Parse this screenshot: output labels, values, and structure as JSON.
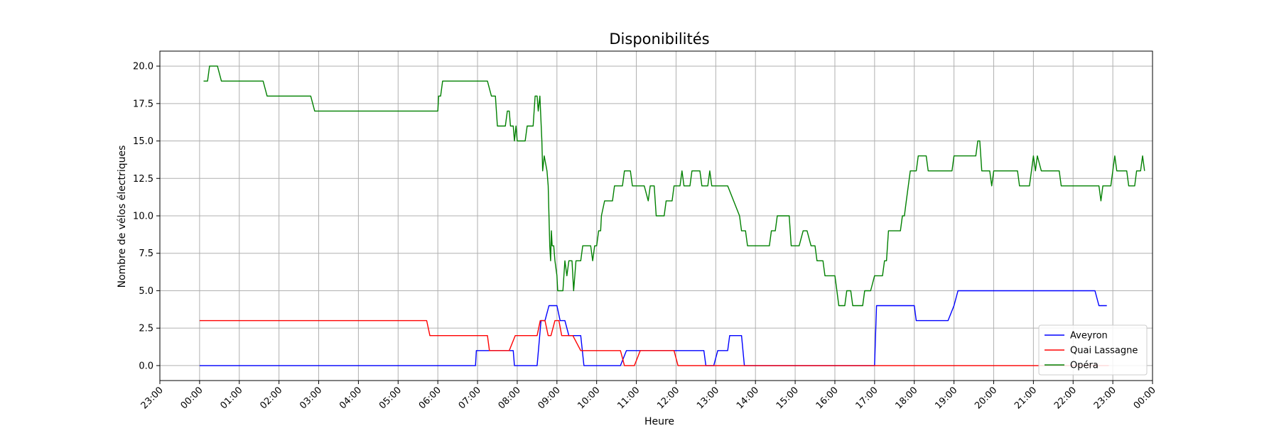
{
  "chart_data": {
    "type": "line",
    "title": "Disponibilités",
    "xlabel": "Heure",
    "ylabel": "Nombre de vélos électriques",
    "x_unit": "hour of day (23:00 on left edge of axis = -1)",
    "xlim": [
      -1.0,
      24.0
    ],
    "ylim": [
      -1.0,
      21.0
    ],
    "xticks": [
      -1,
      0,
      1,
      2,
      3,
      4,
      5,
      6,
      7,
      8,
      9,
      10,
      11,
      12,
      13,
      14,
      15,
      16,
      17,
      18,
      19,
      20,
      21,
      22,
      23,
      24
    ],
    "xtick_labels": [
      "23:00",
      "00:00",
      "01:00",
      "02:00",
      "03:00",
      "04:00",
      "05:00",
      "06:00",
      "07:00",
      "08:00",
      "09:00",
      "10:00",
      "11:00",
      "12:00",
      "13:00",
      "14:00",
      "15:00",
      "16:00",
      "17:00",
      "18:00",
      "19:00",
      "20:00",
      "21:00",
      "22:00",
      "23:00",
      "00:00"
    ],
    "yticks": [
      0,
      2.5,
      5,
      7.5,
      10,
      12.5,
      15,
      17.5,
      20
    ],
    "ytick_labels": [
      "0.0",
      "2.5",
      "5.0",
      "7.5",
      "10.0",
      "12.5",
      "15.0",
      "17.5",
      "20.0"
    ],
    "grid": true,
    "legend_position": "bottom-right",
    "series": [
      {
        "name": "Aveyron",
        "color": "#0000ff",
        "points": [
          [
            0.0,
            0
          ],
          [
            6.95,
            0
          ],
          [
            6.97,
            1
          ],
          [
            7.9,
            1
          ],
          [
            7.93,
            0
          ],
          [
            8.5,
            0
          ],
          [
            8.6,
            3
          ],
          [
            8.7,
            3
          ],
          [
            8.8,
            4
          ],
          [
            9.0,
            4
          ],
          [
            9.08,
            3
          ],
          [
            9.2,
            3
          ],
          [
            9.3,
            2
          ],
          [
            9.6,
            2
          ],
          [
            9.68,
            0
          ],
          [
            10.6,
            0
          ],
          [
            10.75,
            1
          ],
          [
            11.95,
            1
          ],
          [
            12.05,
            1
          ],
          [
            12.7,
            1
          ],
          [
            12.75,
            0
          ],
          [
            12.95,
            0
          ],
          [
            13.05,
            1
          ],
          [
            13.3,
            1
          ],
          [
            13.35,
            2
          ],
          [
            13.65,
            2
          ],
          [
            13.72,
            0
          ],
          [
            17.0,
            0
          ],
          [
            17.05,
            4
          ],
          [
            18.0,
            4
          ],
          [
            18.05,
            3
          ],
          [
            18.85,
            3
          ],
          [
            19.0,
            4
          ],
          [
            19.1,
            5
          ],
          [
            22.55,
            5
          ],
          [
            22.65,
            4
          ],
          [
            22.85,
            4
          ]
        ]
      },
      {
        "name": "Quai Lassagne",
        "color": "#ff0000",
        "points": [
          [
            0.0,
            3
          ],
          [
            5.72,
            3
          ],
          [
            5.8,
            2
          ],
          [
            7.25,
            2
          ],
          [
            7.3,
            1
          ],
          [
            7.8,
            1
          ],
          [
            7.95,
            2
          ],
          [
            8.5,
            2
          ],
          [
            8.58,
            3
          ],
          [
            8.7,
            3
          ],
          [
            8.78,
            2
          ],
          [
            8.85,
            2
          ],
          [
            8.95,
            3
          ],
          [
            9.05,
            3
          ],
          [
            9.12,
            2
          ],
          [
            9.4,
            2
          ],
          [
            9.6,
            1
          ],
          [
            10.6,
            1
          ],
          [
            10.7,
            0
          ],
          [
            10.95,
            0
          ],
          [
            11.1,
            1
          ],
          [
            11.95,
            1
          ],
          [
            12.05,
            0
          ],
          [
            22.9,
            0
          ]
        ]
      },
      {
        "name": "Opéra",
        "color": "#008000",
        "points": [
          [
            0.1,
            19
          ],
          [
            0.2,
            19
          ],
          [
            0.25,
            20
          ],
          [
            0.45,
            20
          ],
          [
            0.55,
            19
          ],
          [
            1.6,
            19
          ],
          [
            1.7,
            18
          ],
          [
            2.8,
            18
          ],
          [
            2.9,
            17
          ],
          [
            6.0,
            17
          ],
          [
            6.02,
            18
          ],
          [
            6.07,
            18
          ],
          [
            6.12,
            19
          ],
          [
            7.25,
            19
          ],
          [
            7.35,
            18
          ],
          [
            7.45,
            18
          ],
          [
            7.5,
            16
          ],
          [
            7.7,
            16
          ],
          [
            7.75,
            17
          ],
          [
            7.8,
            17
          ],
          [
            7.83,
            16
          ],
          [
            7.9,
            16
          ],
          [
            7.93,
            15
          ],
          [
            7.97,
            16
          ],
          [
            8.0,
            15
          ],
          [
            8.2,
            15
          ],
          [
            8.25,
            16
          ],
          [
            8.4,
            16
          ],
          [
            8.45,
            18
          ],
          [
            8.5,
            18
          ],
          [
            8.53,
            17
          ],
          [
            8.57,
            18
          ],
          [
            8.62,
            15
          ],
          [
            8.64,
            13
          ],
          [
            8.68,
            14
          ],
          [
            8.75,
            13
          ],
          [
            8.78,
            12
          ],
          [
            8.82,
            8
          ],
          [
            8.84,
            7
          ],
          [
            8.86,
            9
          ],
          [
            8.88,
            8
          ],
          [
            8.92,
            8
          ],
          [
            8.95,
            7
          ],
          [
            9.0,
            6
          ],
          [
            9.02,
            5
          ],
          [
            9.15,
            5
          ],
          [
            9.2,
            7
          ],
          [
            9.25,
            6
          ],
          [
            9.3,
            7
          ],
          [
            9.38,
            7
          ],
          [
            9.42,
            5
          ],
          [
            9.48,
            7
          ],
          [
            9.6,
            7
          ],
          [
            9.65,
            8
          ],
          [
            9.85,
            8
          ],
          [
            9.9,
            7
          ],
          [
            9.95,
            8
          ],
          [
            10.0,
            8
          ],
          [
            10.05,
            9
          ],
          [
            10.1,
            9
          ],
          [
            10.12,
            10
          ],
          [
            10.2,
            11
          ],
          [
            10.4,
            11
          ],
          [
            10.45,
            12
          ],
          [
            10.65,
            12
          ],
          [
            10.7,
            13
          ],
          [
            10.85,
            13
          ],
          [
            10.9,
            12
          ],
          [
            11.2,
            12
          ],
          [
            11.3,
            11
          ],
          [
            11.35,
            12
          ],
          [
            11.45,
            12
          ],
          [
            11.5,
            10
          ],
          [
            11.7,
            10
          ],
          [
            11.75,
            11
          ],
          [
            11.9,
            11
          ],
          [
            11.95,
            12
          ],
          [
            12.1,
            12
          ],
          [
            12.15,
            13
          ],
          [
            12.2,
            12
          ],
          [
            12.35,
            12
          ],
          [
            12.4,
            13
          ],
          [
            12.6,
            13
          ],
          [
            12.65,
            12
          ],
          [
            12.8,
            12
          ],
          [
            12.85,
            13
          ],
          [
            12.9,
            12
          ],
          [
            13.3,
            12
          ],
          [
            13.6,
            10
          ],
          [
            13.65,
            9
          ],
          [
            13.75,
            9
          ],
          [
            13.8,
            8
          ],
          [
            14.35,
            8
          ],
          [
            14.4,
            9
          ],
          [
            14.5,
            9
          ],
          [
            14.55,
            10
          ],
          [
            14.85,
            10
          ],
          [
            14.9,
            8
          ],
          [
            15.1,
            8
          ],
          [
            15.2,
            9
          ],
          [
            15.3,
            9
          ],
          [
            15.4,
            8
          ],
          [
            15.5,
            8
          ],
          [
            15.55,
            7
          ],
          [
            15.7,
            7
          ],
          [
            15.75,
            6
          ],
          [
            16.0,
            6
          ],
          [
            16.05,
            5
          ],
          [
            16.1,
            4
          ],
          [
            16.25,
            4
          ],
          [
            16.3,
            5
          ],
          [
            16.4,
            5
          ],
          [
            16.45,
            4
          ],
          [
            16.7,
            4
          ],
          [
            16.75,
            5
          ],
          [
            16.9,
            5
          ],
          [
            17.0,
            6
          ],
          [
            17.2,
            6
          ],
          [
            17.25,
            7
          ],
          [
            17.3,
            7
          ],
          [
            17.35,
            9
          ],
          [
            17.65,
            9
          ],
          [
            17.7,
            10
          ],
          [
            17.75,
            10
          ],
          [
            17.8,
            11
          ],
          [
            17.85,
            12
          ],
          [
            17.9,
            13
          ],
          [
            18.05,
            13
          ],
          [
            18.1,
            14
          ],
          [
            18.3,
            14
          ],
          [
            18.35,
            13
          ],
          [
            18.95,
            13
          ],
          [
            19.0,
            14
          ],
          [
            19.55,
            14
          ],
          [
            19.6,
            15
          ],
          [
            19.65,
            15
          ],
          [
            19.7,
            13
          ],
          [
            19.9,
            13
          ],
          [
            19.95,
            12
          ],
          [
            20.0,
            13
          ],
          [
            20.6,
            13
          ],
          [
            20.65,
            12
          ],
          [
            20.9,
            12
          ],
          [
            20.95,
            13
          ],
          [
            21.0,
            14
          ],
          [
            21.05,
            13
          ],
          [
            21.1,
            14
          ],
          [
            21.2,
            13
          ],
          [
            21.65,
            13
          ],
          [
            21.7,
            12
          ],
          [
            22.65,
            12
          ],
          [
            22.7,
            11
          ],
          [
            22.75,
            12
          ],
          [
            22.95,
            12
          ],
          [
            23.0,
            13
          ],
          [
            23.05,
            14
          ],
          [
            23.1,
            13
          ],
          [
            23.35,
            13
          ],
          [
            23.4,
            12
          ],
          [
            23.55,
            12
          ],
          [
            23.6,
            13
          ],
          [
            23.7,
            13
          ],
          [
            23.75,
            14
          ],
          [
            23.8,
            13
          ]
        ]
      }
    ]
  }
}
